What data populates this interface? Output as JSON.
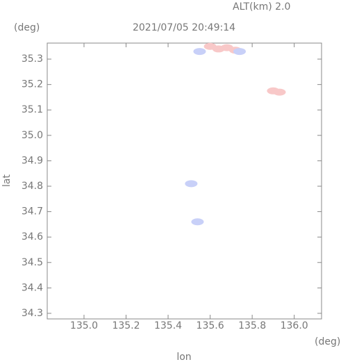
{
  "chart_data": {
    "type": "scatter",
    "title": "2021/07/05 20:49:14",
    "header": "ALT(km) 2.0",
    "y_unit": "(deg)",
    "x_unit": "(deg)",
    "xlabel": "lon",
    "ylabel": "lat",
    "xlim": [
      134.825,
      136.13
    ],
    "ylim": [
      34.278,
      35.363
    ],
    "xticks": [
      {
        "value": 135.0,
        "label": "135.0"
      },
      135.2,
      135.4,
      135.6,
      135.8,
      {
        "value": 136.0,
        "label": "136.0"
      }
    ],
    "yticks": [
      34.3,
      34.4,
      34.5,
      34.6,
      34.7,
      34.8,
      34.9,
      {
        "value": 35.0,
        "label": "35.0"
      },
      35.1,
      35.2,
      35.3
    ],
    "series": [
      {
        "color": "#f8c8c8",
        "x": [
          135.6,
          135.64,
          135.68,
          135.72,
          135.9,
          135.93
        ],
        "values": [
          35.35,
          35.34,
          35.345,
          35.335,
          35.175,
          35.17
        ]
      },
      {
        "color": "#c8d0f8",
        "x": [
          135.55,
          135.74,
          135.51,
          135.54
        ],
        "values": [
          35.33,
          35.33,
          34.81,
          34.66
        ]
      }
    ]
  }
}
